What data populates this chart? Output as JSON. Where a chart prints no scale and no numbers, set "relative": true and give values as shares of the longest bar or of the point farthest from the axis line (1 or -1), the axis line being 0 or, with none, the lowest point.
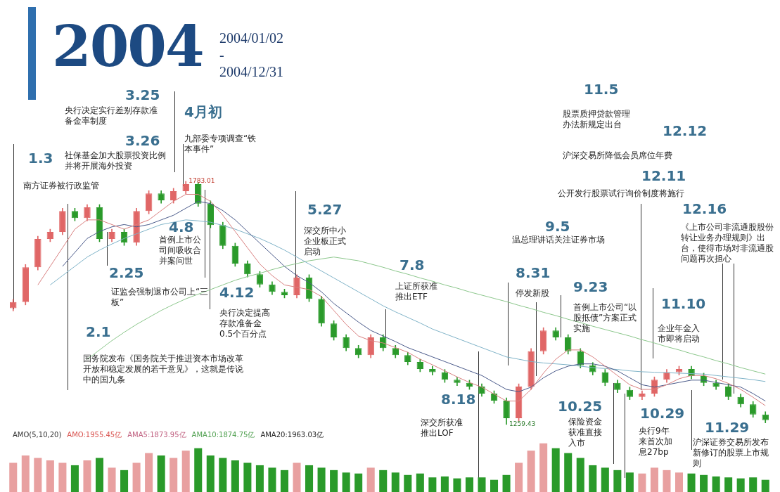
{
  "chart_data": [
    {
      "type": "candlestick",
      "title": "2004",
      "subtitle": "2004/01/02\n-\n2004/12/31",
      "tick_labels": false,
      "categories": [
        null,
        null,
        null,
        null,
        null,
        null,
        null,
        null,
        null,
        null,
        null,
        null,
        null,
        null,
        null,
        null,
        null,
        null,
        null,
        null,
        null,
        null,
        null,
        null,
        null,
        null,
        null,
        null,
        null,
        null,
        null,
        null,
        null,
        null,
        null,
        null,
        null,
        null,
        null,
        null,
        null,
        null,
        null,
        null,
        null,
        null,
        null,
        null,
        null,
        null,
        null,
        null,
        null,
        null,
        null,
        null,
        null,
        null,
        null,
        null,
        null,
        null
      ],
      "ohlc": [
        [
          1510,
          1529,
          1504,
          1523
        ],
        [
          1523,
          1604,
          1517,
          1598
        ],
        [
          1598,
          1665,
          1592,
          1659
        ],
        [
          1659,
          1680,
          1653,
          1674
        ],
        [
          1674,
          1725,
          1668,
          1719
        ],
        [
          1719,
          1725,
          1698,
          1704
        ],
        [
          1704,
          1733,
          1698,
          1727
        ],
        [
          1727,
          1733,
          1653,
          1659
        ],
        [
          1659,
          1680,
          1653,
          1674
        ],
        [
          1674,
          1680,
          1645,
          1651
        ],
        [
          1651,
          1725,
          1645,
          1719
        ],
        [
          1719,
          1763,
          1713,
          1757
        ],
        [
          1757,
          1763,
          1736,
          1742
        ],
        [
          1742,
          1768,
          1736,
          1762
        ],
        [
          1762,
          1783.01,
          1756,
          1777
        ],
        [
          1777,
          1781,
          1729,
          1735
        ],
        [
          1735,
          1741,
          1683,
          1689
        ],
        [
          1689,
          1695,
          1638,
          1644
        ],
        [
          1644,
          1650,
          1600,
          1606
        ],
        [
          1606,
          1612,
          1577,
          1583
        ],
        [
          1583,
          1589,
          1555,
          1561
        ],
        [
          1561,
          1567,
          1539,
          1545
        ],
        [
          1545,
          1551,
          1532,
          1538
        ],
        [
          1538,
          1582,
          1532,
          1576
        ],
        [
          1576,
          1582,
          1524,
          1530
        ],
        [
          1530,
          1536,
          1471,
          1477
        ],
        [
          1477,
          1483,
          1441,
          1447
        ],
        [
          1447,
          1453,
          1418,
          1424
        ],
        [
          1424,
          1430,
          1403,
          1409
        ],
        [
          1409,
          1453,
          1403,
          1447
        ],
        [
          1447,
          1453,
          1418,
          1424
        ],
        [
          1424,
          1430,
          1403,
          1409
        ],
        [
          1409,
          1415,
          1388,
          1394
        ],
        [
          1394,
          1400,
          1373,
          1379
        ],
        [
          1379,
          1385,
          1366,
          1372
        ],
        [
          1372,
          1378,
          1350,
          1356
        ],
        [
          1356,
          1362,
          1343,
          1349
        ],
        [
          1349,
          1355,
          1335,
          1341
        ],
        [
          1341,
          1347,
          1320,
          1326
        ],
        [
          1326,
          1332,
          1305,
          1311
        ],
        [
          1311,
          1317,
          1259.43,
          1273
        ],
        [
          1273,
          1347,
          1267,
          1341
        ],
        [
          1341,
          1423,
          1335,
          1417
        ],
        [
          1417,
          1468,
          1411,
          1462
        ],
        [
          1462,
          1468,
          1441,
          1447
        ],
        [
          1447,
          1453,
          1411,
          1417
        ],
        [
          1417,
          1423,
          1381,
          1387
        ],
        [
          1387,
          1393,
          1366,
          1372
        ],
        [
          1372,
          1378,
          1343,
          1349
        ],
        [
          1349,
          1355,
          1328,
          1334
        ],
        [
          1334,
          1340,
          1313,
          1319
        ],
        [
          1319,
          1332,
          1313,
          1326
        ],
        [
          1326,
          1362,
          1320,
          1356
        ],
        [
          1356,
          1378,
          1350,
          1372
        ],
        [
          1372,
          1385,
          1366,
          1379
        ],
        [
          1379,
          1385,
          1358,
          1364
        ],
        [
          1364,
          1370,
          1343,
          1349
        ],
        [
          1349,
          1355,
          1335,
          1341
        ],
        [
          1341,
          1347,
          1313,
          1319
        ],
        [
          1319,
          1325,
          1297,
          1303
        ],
        [
          1303,
          1309,
          1275,
          1281
        ],
        [
          1281,
          1287,
          1263,
          1269
        ]
      ],
      "colors": [
        "#e06666",
        "#e06666",
        "#e06666",
        "#e06666",
        "#e06666",
        "#2a9a2a",
        "#e06666",
        "#2a9a2a",
        "#e06666",
        "#2a9a2a",
        "#e06666",
        "#e06666",
        "#2a9a2a",
        "#e06666",
        "#e06666",
        "#2a9a2a",
        "#2a9a2a",
        "#2a9a2a",
        "#2a9a2a",
        "#2a9a2a",
        "#2a9a2a",
        "#2a9a2a",
        "#2a9a2a",
        "#e06666",
        "#2a9a2a",
        "#2a9a2a",
        "#2a9a2a",
        "#2a9a2a",
        "#2a9a2a",
        "#e06666",
        "#2a9a2a",
        "#2a9a2a",
        "#2a9a2a",
        "#2a9a2a",
        "#2a9a2a",
        "#2a9a2a",
        "#2a9a2a",
        "#2a9a2a",
        "#2a9a2a",
        "#2a9a2a",
        "#2a9a2a",
        "#e06666",
        "#e06666",
        "#e06666",
        "#2a9a2a",
        "#2a9a2a",
        "#2a9a2a",
        "#2a9a2a",
        "#2a9a2a",
        "#2a9a2a",
        "#2a9a2a",
        "#e06666",
        "#e06666",
        "#e06666",
        "#e06666",
        "#2a9a2a",
        "#2a9a2a",
        "#2a9a2a",
        "#2a9a2a",
        "#2a9a2a",
        "#2a9a2a",
        "#2a9a2a"
      ],
      "series": [
        {
          "type": "line",
          "color": "#d98080",
          "values": [
            null,
            null,
            1560,
            1600,
            1640,
            1680,
            1700,
            1700,
            1690,
            1680,
            1690,
            1700,
            1720,
            1740,
            1755,
            1755,
            1740,
            1710,
            1675,
            1640,
            1605,
            1580,
            1560,
            1555,
            1550,
            1535,
            1505,
            1475,
            1450,
            1440,
            1435,
            1425,
            1415,
            1400,
            1388,
            1375,
            1362,
            1350,
            1340,
            1325,
            1310,
            1310,
            1335,
            1370,
            1400,
            1420,
            1420,
            1405,
            1385,
            1365,
            1345,
            1335,
            1335,
            1345,
            1358,
            1365,
            1365,
            1358,
            1348,
            1335,
            1318,
            1300
          ]
        },
        {
          "type": "line",
          "color": "#4a5a8a",
          "values": [
            null,
            null,
            null,
            null,
            1600,
            1630,
            1660,
            1675,
            1685,
            1690,
            1685,
            1690,
            1700,
            1710,
            1725,
            1740,
            1735,
            1720,
            1700,
            1675,
            1650,
            1625,
            1600,
            1580,
            1565,
            1545,
            1520,
            1500,
            1480,
            1462,
            1450,
            1438,
            1425,
            1415,
            1405,
            1395,
            1385,
            1375,
            1365,
            1350,
            1335,
            1330,
            1340,
            1360,
            1375,
            1385,
            1390,
            1390,
            1385,
            1375,
            1360,
            1345,
            1340,
            1345,
            1350,
            1355,
            1355,
            1350,
            1345,
            1340,
            1326,
            1310
          ]
        },
        {
          "type": "line",
          "color": "#7fb3c8",
          "values": [
            null,
            null,
            null,
            1560,
            1580,
            1600,
            1620,
            1635,
            1648,
            1660,
            1670,
            1680,
            1690,
            1695,
            1700,
            1698,
            1695,
            1688,
            1680,
            1670,
            1660,
            1648,
            1635,
            1620,
            1605,
            1590,
            1575,
            1560,
            1545,
            1530,
            1515,
            1502,
            1490,
            1478,
            1465,
            1455,
            1445,
            1435,
            1425,
            1415,
            1405,
            1400,
            1395,
            1392,
            1390,
            1388,
            1385,
            1382,
            1380,
            1378,
            1375,
            1373,
            1372,
            1371,
            1370,
            1369,
            1368,
            1365,
            1362,
            1359,
            1356,
            1352
          ]
        },
        {
          "type": "line",
          "color": "#8cc78c",
          "values": [
            null,
            null,
            null,
            null,
            null,
            null,
            1400,
            1420,
            1440,
            1458,
            1475,
            1490,
            1505,
            1518,
            1530,
            1540,
            1550,
            1560,
            1570,
            1578,
            1585,
            1593,
            1600,
            1606,
            1612,
            1616,
            1620,
            1616,
            1612,
            1605,
            1598,
            1590,
            1583,
            1575,
            1568,
            1560,
            1553,
            1545,
            1538,
            1531,
            1524,
            1516,
            1509,
            1501,
            1494,
            1486,
            1479,
            1471,
            1464,
            1457,
            1450,
            1442,
            1435,
            1427,
            1420,
            1412,
            1405,
            1397,
            1390,
            1382,
            1375,
            1368
          ]
        }
      ],
      "annotations": [
        "1.3",
        "南方证券被行政监管",
        "3.25",
        "央行决定实行差别存款准备金率制度",
        "3.26",
        "社保基金加大股票投资比例并将开展海外投资",
        "4月初",
        "九部委专项调查“铁本事件”",
        "4.8",
        "首例上市公司间吸收合并案问世",
        "2.25",
        "证监会强制退市公司上“三板”",
        "4.12",
        "央行决定提高存款准备金0.5个百分点",
        "2.1",
        "国务院发布《国务院关于推进资本市场改革开放和稳定发展的若干意见》，这就是传说中的国九条",
        "5.27",
        "深交所中小企业板正式启动",
        "7.8",
        "上证所获准推出ETF",
        "8.18",
        "深交所获准推出LOF",
        "8.31",
        "停发新股",
        "9.5",
        "温总理讲话关注证券市场",
        "9.23",
        "首例上市公司“以股抵债”方案正式实施",
        "10.25",
        "保险资金获准直接入市",
        "10.29",
        "央行9年来首次加息27bp",
        "11.5",
        "股票质押贷款管理办法新规定出台",
        "12.12",
        "沪深交易所降低会员席位年费",
        "12.11",
        "公开发行股票试行询价制度将施行",
        "12.16",
        "《上市公司非流通股股份转让业务办理规则》出台，使得市场对非流通股问题再次担心",
        "11.10",
        "企业年金入市即将启动",
        "11.29",
        "沪深证券交易所发布新修订的股票上市规则",
        "1783.01",
        "1259.43"
      ]
    },
    {
      "type": "bar",
      "relative": true,
      "tick_labels": false,
      "categories": [
        null,
        null,
        null,
        null,
        null,
        null,
        null,
        null,
        null,
        null,
        null,
        null,
        null,
        null,
        null,
        null,
        null,
        null,
        null,
        null,
        null,
        null,
        null,
        null,
        null,
        null,
        null,
        null,
        null,
        null,
        null,
        null,
        null,
        null,
        null,
        null,
        null,
        null,
        null,
        null,
        null,
        null,
        null,
        null,
        null,
        null,
        null,
        null,
        null,
        null,
        null,
        null,
        null,
        null,
        null,
        null,
        null,
        null,
        null,
        null,
        null,
        null
      ],
      "values": [
        0.6,
        0.75,
        0.7,
        0.65,
        0.6,
        0.55,
        0.65,
        0.7,
        0.5,
        0.45,
        0.6,
        0.8,
        0.75,
        0.7,
        0.85,
        0.9,
        0.75,
        0.7,
        0.65,
        0.6,
        0.55,
        0.5,
        0.45,
        0.6,
        0.55,
        0.5,
        0.45,
        0.4,
        0.38,
        0.5,
        0.45,
        0.4,
        0.35,
        0.38,
        0.3,
        0.32,
        0.28,
        0.3,
        0.3,
        0.25,
        0.35,
        0.6,
        0.85,
        1,
        0.9,
        0.8,
        0.7,
        0.55,
        0.5,
        0.45,
        0.4,
        0.38,
        0.5,
        0.45,
        0.4,
        0.38,
        0.35,
        0.32,
        0.3,
        0.28,
        0.3,
        0.25
      ],
      "colors": [
        "#e8a0a0",
        "#e8a0a0",
        "#e8a0a0",
        "#e8a0a0",
        "#e8a0a0",
        "#2a9a2a",
        "#e8a0a0",
        "#2a9a2a",
        "#e8a0a0",
        "#2a9a2a",
        "#e8a0a0",
        "#e8a0a0",
        "#2a9a2a",
        "#e8a0a0",
        "#e8a0a0",
        "#2a9a2a",
        "#2a9a2a",
        "#2a9a2a",
        "#2a9a2a",
        "#2a9a2a",
        "#2a9a2a",
        "#2a9a2a",
        "#2a9a2a",
        "#e8a0a0",
        "#2a9a2a",
        "#2a9a2a",
        "#2a9a2a",
        "#2a9a2a",
        "#2a9a2a",
        "#e8a0a0",
        "#2a9a2a",
        "#2a9a2a",
        "#2a9a2a",
        "#2a9a2a",
        "#2a9a2a",
        "#2a9a2a",
        "#2a9a2a",
        "#2a9a2a",
        "#2a9a2a",
        "#2a9a2a",
        "#2a9a2a",
        "#e8a0a0",
        "#e8a0a0",
        "#e8a0a0",
        "#2a9a2a",
        "#2a9a2a",
        "#2a9a2a",
        "#2a9a2a",
        "#2a9a2a",
        "#2a9a2a",
        "#2a9a2a",
        "#e8a0a0",
        "#e8a0a0",
        "#e8a0a0",
        "#e8a0a0",
        "#2a9a2a",
        "#2a9a2a",
        "#2a9a2a",
        "#2a9a2a",
        "#2a9a2a",
        "#2a9a2a",
        "#2a9a2a"
      ],
      "annotations": [
        "AMO(5,10,20)",
        "AMO:1955.45亿",
        "AMA5:1873.95亿",
        "AMA10:1874.75亿",
        "AMA20:1963.03亿"
      ]
    }
  ]
}
